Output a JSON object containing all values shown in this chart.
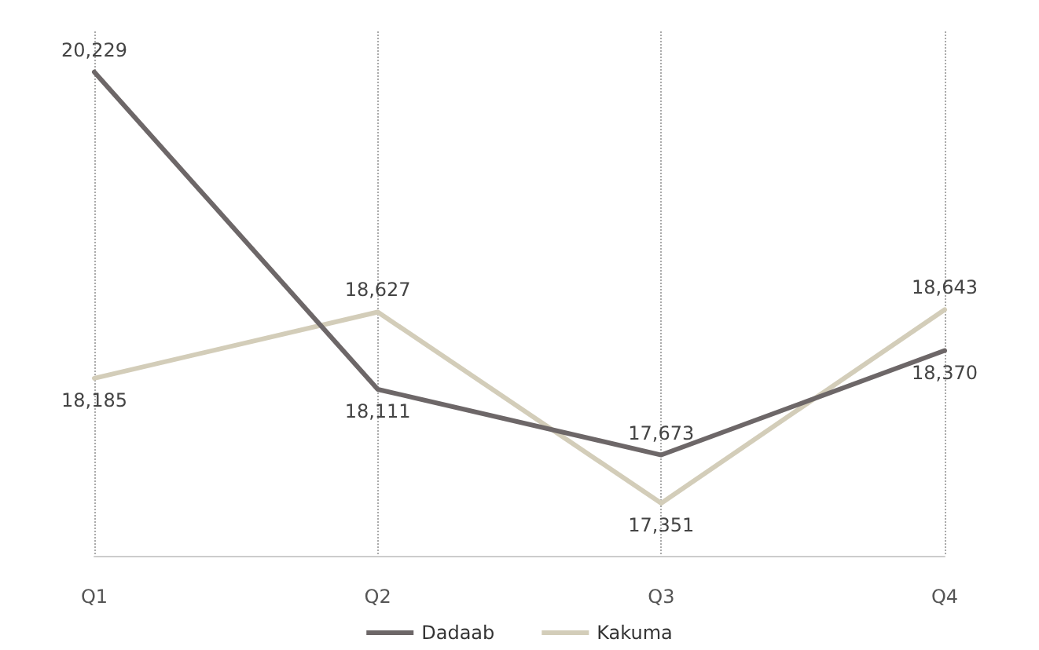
{
  "chart_data": {
    "type": "line",
    "categories": [
      "Q1",
      "Q2",
      "Q3",
      "Q4"
    ],
    "series": [
      {
        "name": "Dadaab",
        "color": "#6d6768",
        "values": [
          20229,
          18111,
          17673,
          18370
        ],
        "value_labels": [
          "20,229",
          "18,111",
          "17,673",
          "18,370"
        ]
      },
      {
        "name": "Kakuma",
        "color": "#d3cdb9",
        "values": [
          18185,
          18627,
          17351,
          18643
        ],
        "value_labels": [
          "18,185",
          "18,627",
          "17,351",
          "18,643"
        ]
      }
    ],
    "tick_labels": "x",
    "grid": "x",
    "legend": "bottom",
    "marker": "none",
    "line_style": "solid"
  }
}
